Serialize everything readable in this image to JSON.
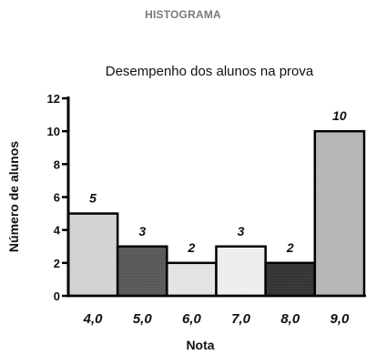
{
  "header": "HISTOGRAMA",
  "chart_data": {
    "type": "bar",
    "title": "Desempenho dos alunos na prova",
    "xlabel": "Nota",
    "ylabel": "Número de alunos",
    "categories": [
      "4,0",
      "5,0",
      "6,0",
      "7,0",
      "8,0",
      "9,0"
    ],
    "values": [
      5,
      3,
      2,
      3,
      2,
      10
    ],
    "data_labels": [
      "5",
      "3",
      "2",
      "3",
      "2",
      "10"
    ],
    "ylim": [
      0,
      12
    ],
    "yticks": [
      "0",
      "2",
      "4",
      "6",
      "8",
      "10",
      "12"
    ],
    "grid": false,
    "bar_colors": [
      "#d4d4d4",
      "#5a5a5a",
      "#e6e6e6",
      "#f0f0f0",
      "#363636",
      "#b8b8b8"
    ]
  }
}
